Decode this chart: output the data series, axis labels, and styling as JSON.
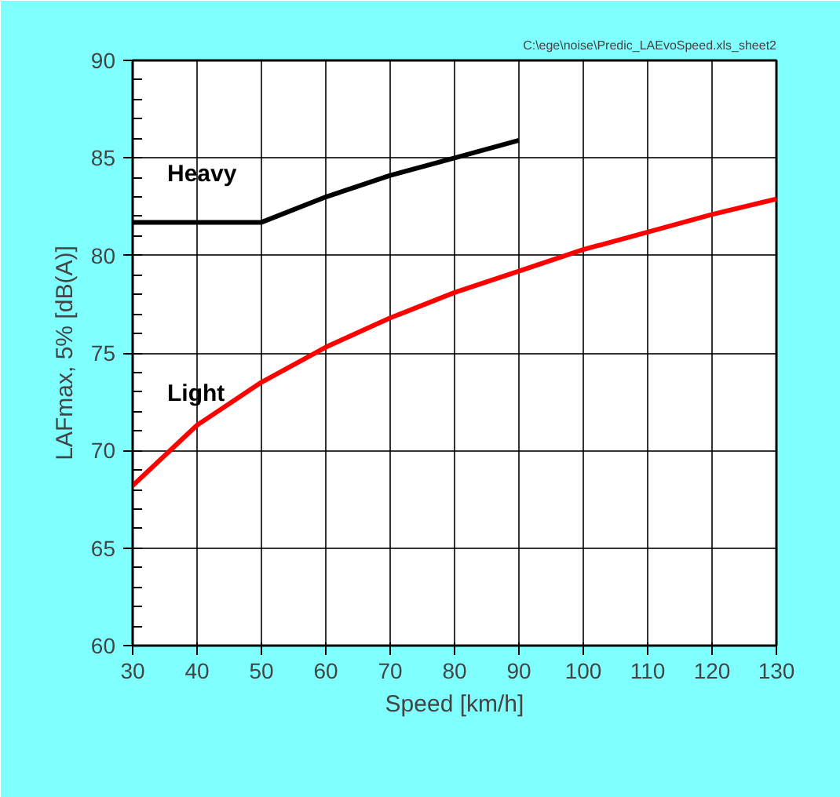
{
  "chart_data": {
    "type": "line",
    "x": [
      30,
      40,
      50,
      60,
      70,
      80,
      90,
      100,
      110,
      120,
      130
    ],
    "series": [
      {
        "name": "Heavy",
        "color": "#000000",
        "x": [
          30,
          50,
          60,
          70,
          80,
          90
        ],
        "values": [
          81.7,
          81.7,
          83.0,
          84.1,
          85.0,
          85.9
        ]
      },
      {
        "name": "Light",
        "color": "#ff0000",
        "values": [
          68.2,
          71.3,
          73.5,
          75.3,
          76.8,
          78.1,
          79.2,
          80.3,
          81.2,
          82.1,
          82.9
        ]
      }
    ],
    "xlabel": "Speed [km/h]",
    "ylabel": "LAFmax, 5% [dB(A)]",
    "xlim": [
      30,
      130
    ],
    "ylim": [
      60,
      90
    ],
    "xticks": [
      30,
      40,
      50,
      60,
      70,
      80,
      90,
      100,
      110,
      120,
      130
    ],
    "yticks": [
      60,
      65,
      70,
      75,
      80,
      85,
      90
    ],
    "annotations": [
      "C:\\ege\\noise\\Predic_LAEvoSpeed.xls_sheet2"
    ],
    "grid": true,
    "marker": "none",
    "line_style": "solid"
  }
}
